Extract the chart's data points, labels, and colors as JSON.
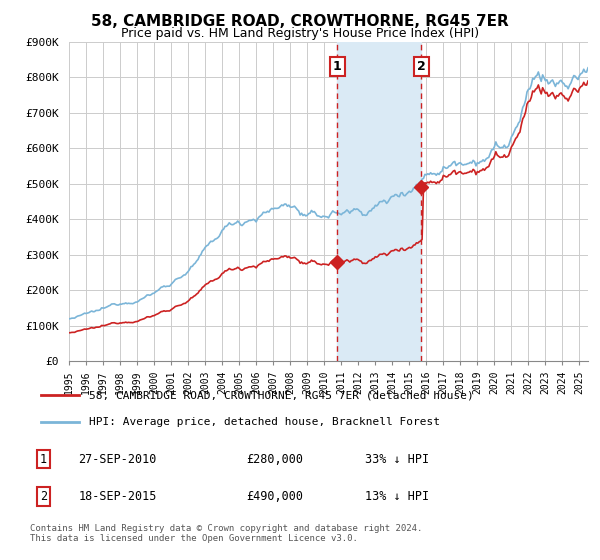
{
  "title": "58, CAMBRIDGE ROAD, CROWTHORNE, RG45 7ER",
  "subtitle": "Price paid vs. HM Land Registry's House Price Index (HPI)",
  "legend_label_red": "58, CAMBRIDGE ROAD, CROWTHORNE, RG45 7ER (detached house)",
  "legend_label_blue": "HPI: Average price, detached house, Bracknell Forest",
  "footer": "Contains HM Land Registry data © Crown copyright and database right 2024.\nThis data is licensed under the Open Government Licence v3.0.",
  "transactions": [
    {
      "num": 1,
      "date": "27-SEP-2010",
      "price": 280000,
      "price_str": "£280,000",
      "pct": "33% ↓ HPI",
      "year": 2010.75
    },
    {
      "num": 2,
      "date": "18-SEP-2015",
      "price": 490000,
      "price_str": "£490,000",
      "pct": "13% ↓ HPI",
      "year": 2015.71
    }
  ],
  "marker1_year": 2010.75,
  "marker2_year": 2015.71,
  "marker1_price": 280000,
  "marker2_price": 490000,
  "ylim": [
    0,
    900000
  ],
  "xlim_start": 1995.0,
  "xlim_end": 2025.5,
  "yticks": [
    0,
    100000,
    200000,
    300000,
    400000,
    500000,
    600000,
    700000,
    800000,
    900000
  ],
  "ytick_labels": [
    "£0",
    "£100K",
    "£200K",
    "£300K",
    "£400K",
    "£500K",
    "£600K",
    "£700K",
    "£800K",
    "£900K"
  ],
  "hpi_color": "#7bb5d8",
  "price_color": "#cc2222",
  "shade_color": "#daeaf5",
  "background_color": "#ffffff",
  "grid_color": "#cccccc",
  "title_fontsize": 11,
  "subtitle_fontsize": 9
}
